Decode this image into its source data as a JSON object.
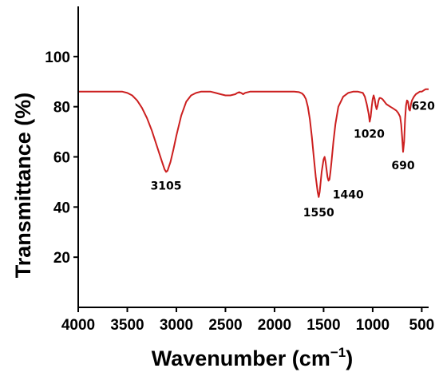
{
  "chart_data": {
    "type": "line",
    "title": "",
    "xlabel": "Wavenumber (cm",
    "xlabel_sup": "−1",
    "xlabel_close": ")",
    "ylabel": "Transmittance (%)",
    "xlim": [
      4000,
      430
    ],
    "ylim": [
      0,
      120
    ],
    "x_reversed": true,
    "x_ticks": [
      4000,
      3500,
      3000,
      2500,
      2000,
      1500,
      1000,
      500
    ],
    "y_ticks": [
      20,
      40,
      60,
      80,
      100
    ],
    "grid": false,
    "legend": "none",
    "color": "#cc1f1f",
    "series": [
      {
        "x": [
          4000,
          3700,
          3600,
          3550,
          3500,
          3450,
          3400,
          3350,
          3300,
          3250,
          3200,
          3150,
          3120,
          3105,
          3090,
          3060,
          3030,
          3000,
          2950,
          2900,
          2850,
          2800,
          2750,
          2700,
          2650,
          2600,
          2550,
          2500,
          2450,
          2400,
          2380,
          2360,
          2340,
          2320,
          2300,
          2250,
          2200,
          2100,
          2000,
          1900,
          1800,
          1750,
          1720,
          1700,
          1680,
          1660,
          1640,
          1620,
          1600,
          1580,
          1560,
          1550,
          1540,
          1520,
          1500,
          1490,
          1480,
          1470,
          1460,
          1450,
          1440,
          1430,
          1420,
          1400,
          1380,
          1350,
          1300,
          1250,
          1200,
          1150,
          1100,
          1080,
          1060,
          1040,
          1030,
          1020,
          1010,
          1000,
          990,
          980,
          970,
          960,
          950,
          940,
          930,
          920,
          900,
          880,
          860,
          840,
          820,
          800,
          780,
          760,
          740,
          720,
          710,
          700,
          690,
          680,
          670,
          660,
          650,
          640,
          630,
          620,
          610,
          600,
          580,
          560,
          540,
          520,
          500,
          480,
          460,
          440,
          430
        ],
        "y": [
          86,
          86,
          86,
          86,
          85.5,
          84.5,
          82.5,
          79.5,
          75.5,
          70.5,
          64.5,
          58.5,
          55,
          54,
          54.5,
          58,
          63,
          68.5,
          76.5,
          82,
          84.5,
          85.5,
          86,
          86,
          86,
          85.5,
          85,
          84.5,
          84.5,
          85,
          85.5,
          85.8,
          85.5,
          85,
          85.5,
          86,
          86,
          86,
          86,
          86,
          86,
          85.8,
          85.3,
          84.5,
          83,
          80,
          75,
          68,
          60,
          52,
          46,
          44,
          46,
          54,
          59,
          60,
          58,
          55,
          52,
          50.5,
          51,
          54,
          58,
          66,
          73,
          80,
          84,
          85.5,
          86,
          86,
          85.5,
          84,
          81,
          77,
          74,
          76,
          80,
          83,
          84.5,
          83,
          80.5,
          79,
          80.5,
          82.5,
          83.5,
          83.5,
          83,
          82,
          81,
          80.5,
          80,
          79.5,
          79,
          78.5,
          77.5,
          76,
          73,
          68,
          62,
          66,
          75,
          80.5,
          82.5,
          82,
          79,
          78.5,
          81,
          82.5,
          84,
          85,
          85.5,
          86,
          86,
          86.5,
          87,
          87,
          87
        ]
      }
    ],
    "annotations": [
      {
        "text": "3105",
        "x": 3105,
        "y": 54
      },
      {
        "text": "1550",
        "x": 1550,
        "y": 44
      },
      {
        "text": "1440",
        "x": 1440,
        "y": 50.5
      },
      {
        "text": "1020",
        "x": 1020,
        "y": 74
      },
      {
        "text": "690",
        "x": 690,
        "y": 62
      },
      {
        "text": "620",
        "x": 620,
        "y": 78.5
      }
    ]
  }
}
